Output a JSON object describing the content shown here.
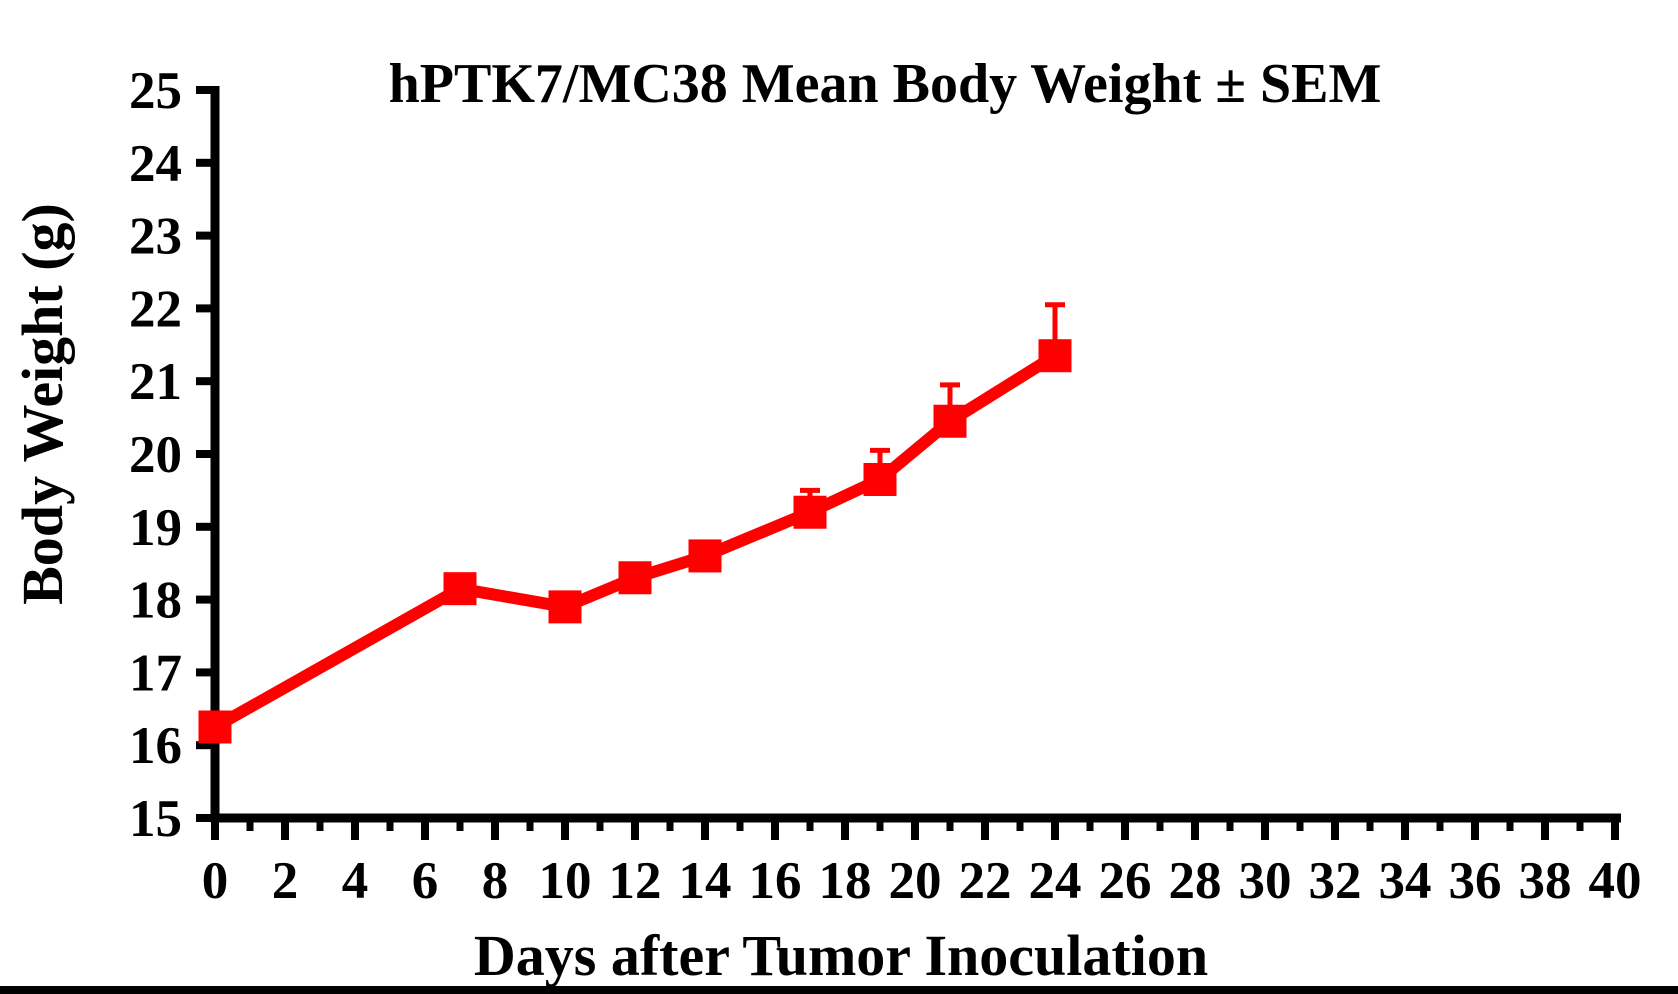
{
  "chart_data": {
    "type": "line",
    "title": "hPTK7/MC38 Mean Body Weight ± SEM",
    "xlabel": "Days after Tumor Inoculation",
    "ylabel": "Body Weight (g)",
    "xlim": [
      0,
      40
    ],
    "ylim": [
      15,
      25
    ],
    "x_label_step": 2,
    "x_minor_step": 1,
    "y_step": 1,
    "grid": false,
    "legend": false,
    "series": [
      {
        "name": "hPTK7/MC38",
        "color": "#ff0000",
        "marker": "square",
        "x": [
          0,
          7,
          10,
          12,
          14,
          17,
          19,
          21,
          24
        ],
        "y": [
          16.25,
          18.15,
          17.9,
          18.3,
          18.6,
          19.2,
          19.65,
          20.45,
          21.35
        ],
        "sem_upper": [
          0,
          0,
          0,
          0,
          0,
          0.3,
          0.4,
          0.5,
          0.7
        ]
      }
    ]
  },
  "colors": {
    "axis": "#000000",
    "series": "#ff0000",
    "background": "#ffffff",
    "bottom_bar": "#000000"
  }
}
